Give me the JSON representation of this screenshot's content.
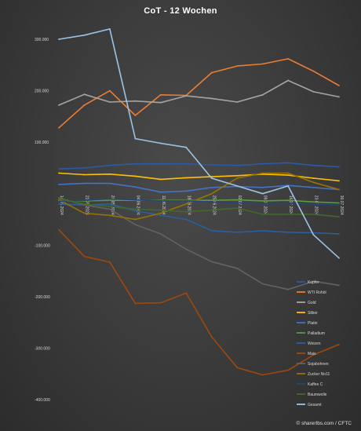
{
  "chart_data": {
    "type": "line",
    "title": "CoT - 12 Wochen",
    "x": [
      "14.05.2024",
      "21.05.2024",
      "28.05.2024",
      "04.06.2024",
      "11.06.2024",
      "18.06.2024",
      "25.06.2024",
      "02.07.2024",
      "09.07.2024",
      "16.07.2024",
      "23.07.2024",
      "30.07.2024"
    ],
    "ylim": [
      -420000,
      320000
    ],
    "yticks": [
      300000,
      200000,
      100000,
      -100000,
      -200000,
      -300000,
      -400000
    ],
    "ytick_labels": [
      "300.000",
      "200.000",
      "100.000",
      "-100.000",
      "-200.000",
      "-300.000",
      "-400.000"
    ],
    "grid": false,
    "legend_position": "bottom-right",
    "series": [
      {
        "name": "Kupfer",
        "color": "#2a5aa8",
        "values": [
          48000,
          50000,
          55000,
          58000,
          58000,
          58000,
          56000,
          55000,
          58000,
          60000,
          55000,
          52000
        ]
      },
      {
        "name": "WTI Rohöl",
        "color": "#ed7d31",
        "values": [
          128000,
          172000,
          200000,
          152000,
          192000,
          191000,
          235000,
          248000,
          252000,
          262000,
          238000,
          210000
        ]
      },
      {
        "name": "Gold",
        "color": "#a5a5a5",
        "values": [
          172000,
          193000,
          178000,
          180000,
          177000,
          190000,
          185000,
          178000,
          192000,
          220000,
          198000,
          188000
        ]
      },
      {
        "name": "Silber",
        "color": "#ffc000",
        "values": [
          40000,
          37000,
          38000,
          34000,
          28000,
          31000,
          33000,
          35000,
          38000,
          36000,
          30000,
          25000
        ]
      },
      {
        "name": "Platin",
        "color": "#4472c4",
        "values": [
          18000,
          20000,
          20000,
          13000,
          3000,
          5000,
          12000,
          14000,
          12000,
          16000,
          12000,
          8000
        ]
      },
      {
        "name": "Palladium",
        "color": "#5b9b3c",
        "values": [
          -14000,
          -14000,
          -13000,
          -13000,
          -13000,
          -13000,
          -13000,
          -12000,
          -14000,
          -13000,
          -16000,
          -18000
        ]
      },
      {
        "name": "Weizen",
        "color": "#2b5f9e",
        "values": [
          -20000,
          -22000,
          -20000,
          -33000,
          -42000,
          -50000,
          -72000,
          -75000,
          -72000,
          -75000,
          -76000,
          -78000
        ]
      },
      {
        "name": "Mais",
        "color": "#9e480e",
        "values": [
          -70000,
          -122000,
          -133000,
          -213000,
          -212000,
          -193000,
          -278000,
          -338000,
          -352000,
          -343000,
          -313000,
          -293000
        ]
      },
      {
        "name": "Sojabohnen",
        "color": "#636363",
        "values": [
          -8000,
          -22000,
          -30000,
          -60000,
          -78000,
          -108000,
          -132000,
          -145000,
          -175000,
          -186000,
          -170000,
          -178000
        ]
      },
      {
        "name": "Zucker No11",
        "color": "#997300",
        "values": [
          -12000,
          -38000,
          -42000,
          -50000,
          -38000,
          -20000,
          0,
          30000,
          40000,
          40000,
          22000,
          8000
        ]
      },
      {
        "name": "Kaffee C",
        "color": "#264478",
        "values": [
          -15000,
          -13000,
          -10000,
          -12000,
          -14000,
          -14000,
          -16000,
          -18000,
          -20000,
          -19000,
          -20000,
          -22000
        ]
      },
      {
        "name": "Baumwolle",
        "color": "#43682b",
        "values": [
          -10000,
          -20000,
          -25000,
          -30000,
          -32000,
          -35000,
          -32000,
          -28000,
          -40000,
          -40000,
          -40000,
          -45000
        ]
      },
      {
        "name": "Gesamt",
        "color": "#9dc3e6",
        "values": [
          300000,
          308000,
          320000,
          107000,
          98000,
          90000,
          30000,
          15000,
          0,
          15000,
          -80000,
          -125000
        ]
      }
    ]
  },
  "footer": {
    "credit": "© sharerIbs.com / CFTC"
  }
}
